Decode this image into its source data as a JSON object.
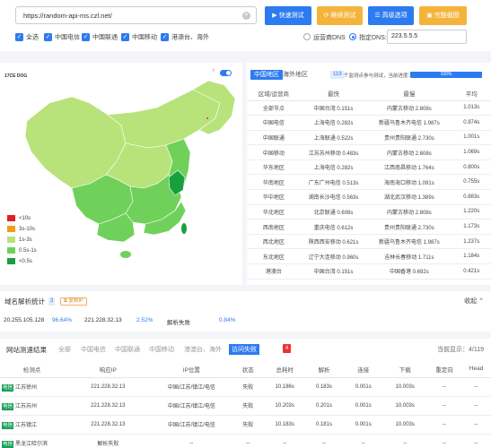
{
  "toolbar": {
    "url_value": "https://random-api-ms.czl.net/",
    "buttons": [
      {
        "label": "快速测试",
        "icon": "play-icon",
        "color": "#2d7bf0"
      },
      {
        "label": "继续测试",
        "icon": "refresh-icon",
        "color": "#f4b43c"
      },
      {
        "label": "高级选项",
        "icon": "settings-icon",
        "color": "#2d7bf0"
      },
      {
        "label": "完整截图",
        "icon": "camera-icon",
        "color": "#f4b43c"
      }
    ],
    "isp_filters": [
      "全选",
      "中国电信",
      "中国联通",
      "中国移动",
      "港澳台、海外"
    ],
    "dns_options": [
      "运营商DNS",
      "指定DNS:"
    ],
    "dns_value": "223.5.5.5"
  },
  "map": {
    "logo": "17CE DOG",
    "legend": [
      {
        "label": "<10s",
        "color": "#dd2222"
      },
      {
        "label": "3s-10s",
        "color": "#f39c18"
      },
      {
        "label": "1s-3s",
        "color": "#b8e37a"
      },
      {
        "label": "0.5s-1s",
        "color": "#6fd15a"
      },
      {
        "label": "<0.5s",
        "color": "#18a03e"
      }
    ]
  },
  "region_panel": {
    "tabs": [
      "中国地区",
      "海外地区"
    ],
    "node_count": "119",
    "progress_label": "个监测点参与测试，当前进度：",
    "progress_value": "100%",
    "progress_fraction": 1,
    "headers": [
      "区域/运营商",
      "最快",
      "最慢",
      "平均"
    ],
    "rows": [
      [
        "全部节点",
        "中国台湾 0.151s",
        "内蒙古移动 2.808s",
        "1.013s"
      ],
      [
        "中国电信",
        "上海电信 0.282s",
        "新疆乌鲁木齐电信 1.987s",
        "0.974s"
      ],
      [
        "中国联通",
        "上海联通 0.522s",
        "贵州贵阳联通 2.730s",
        "1.001s"
      ],
      [
        "中国移动",
        "江苏苏州移动 0.483s",
        "内蒙古移动 2.808s",
        "1.069s"
      ],
      [
        "华东地区",
        "上海电信 0.282s",
        "江西南昌移动 1.764s",
        "0.800s"
      ],
      [
        "华南地区",
        "广东广州电信 0.513s",
        "海南海口移动 1.091s",
        "0.755s"
      ],
      [
        "华中地区",
        "湖南长沙电信 0.563s",
        "湖北武汉移动 1.389s",
        "0.883s"
      ],
      [
        "华北地区",
        "北京联通 0.608s",
        "内蒙古移动 2.808s",
        "1.220s"
      ],
      [
        "西南地区",
        "重庆电信 0.612s",
        "贵州贵阳联通 2.730s",
        "1.173s"
      ],
      [
        "西北地区",
        "陕西西安移动 0.621s",
        "新疆乌鲁木齐电信 1.987s",
        "1.237s"
      ],
      [
        "东北地区",
        "辽宁大连移动 0.960s",
        "吉林长春移动 1.711s",
        "1.184s"
      ],
      [
        "港澳台",
        "中国台湾 0.151s",
        "中国香港 0.692s",
        "0.421s"
      ]
    ]
  },
  "dns_stats": {
    "title": "域名解析统计",
    "count": "3",
    "copy_label": "复制IP",
    "collapse_label": "收起",
    "items": [
      {
        "ip": "20.255.105.128",
        "pct": "96.64%"
      },
      {
        "ip": "221.228.32.13",
        "pct": "2.52%"
      },
      {
        "ip": "解析失败",
        "pct": "0.84%"
      }
    ]
  },
  "results": {
    "title": "网站测速结果",
    "tabs": [
      "全部",
      "中国电信",
      "中国联通",
      "中国移动",
      "港澳台、海外",
      "访问失败"
    ],
    "fail_count": "4",
    "display_label": "当前显示：4/119",
    "headers": [
      "检测点",
      "响应IP",
      "IP位置",
      "状态",
      "总耗时",
      "解析",
      "连接",
      "下载",
      "重定向",
      "Head"
    ],
    "rows": [
      {
        "isp": "电信",
        "node": "江苏徐州",
        "ip": "221.228.32.13",
        "loc": "中国/江苏/镇江/电信",
        "status": "失败",
        "total": "10.186s",
        "dns": "0.183s",
        "conn": "0.001s",
        "dl": "10.003s",
        "redir": "--",
        "head": "--"
      },
      {
        "isp": "电信",
        "node": "江苏苏州",
        "ip": "221.228.32.13",
        "loc": "中国/江苏/镇江/电信",
        "status": "失败",
        "total": "10.203s",
        "dns": "0.201s",
        "conn": "0.001s",
        "dl": "10.003s",
        "redir": "--",
        "head": "--"
      },
      {
        "isp": "电信",
        "node": "江苏镇江",
        "ip": "221.228.32.13",
        "loc": "中国/江苏/镇江/电信",
        "status": "失败",
        "total": "10.183s",
        "dns": "0.181s",
        "conn": "0.001s",
        "dl": "10.003s",
        "redir": "--",
        "head": "--"
      },
      {
        "isp": "电信",
        "node": "黑龙江哈尔滨",
        "ip": "解析失败",
        "loc": "--",
        "status": "--",
        "total": "--",
        "dns": "--",
        "conn": "--",
        "dl": "--",
        "redir": "--",
        "head": "--"
      }
    ]
  }
}
